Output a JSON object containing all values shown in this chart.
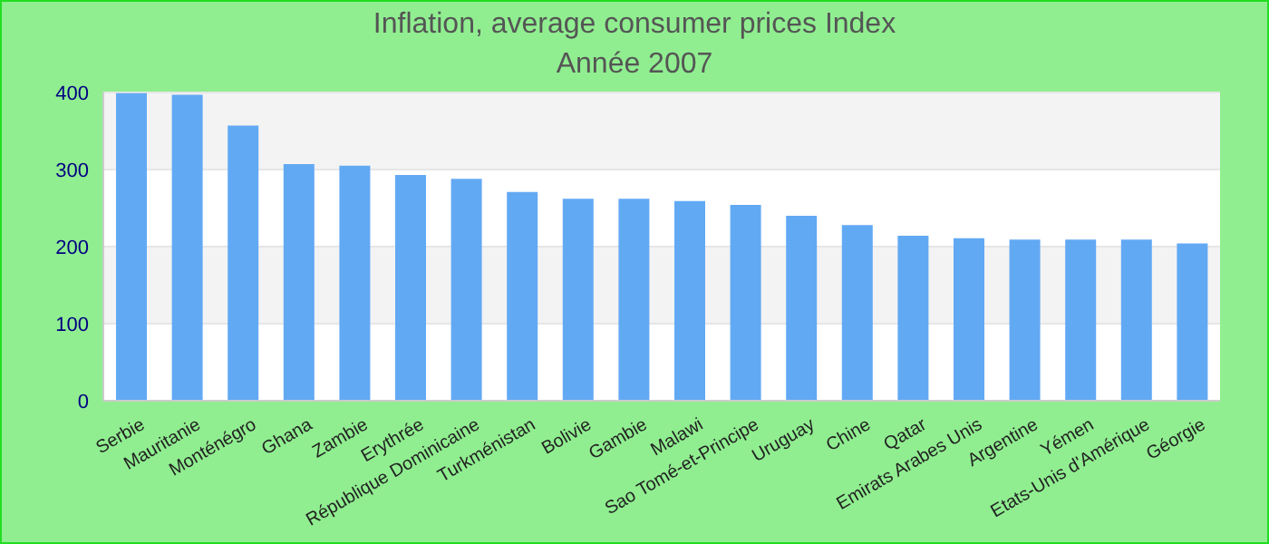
{
  "chart_data": {
    "type": "bar",
    "title": "Inflation, average consumer prices  Index",
    "subtitle": "Année 2007",
    "categories": [
      "Serbie",
      "Mauritanie",
      "Monténégro",
      "Ghana",
      "Zambie",
      "Erythrée",
      "République Dominicaine",
      "Turkménistan",
      "Bolivie",
      "Gambie",
      "Malawi",
      "Sao Tomé-et-Principe",
      "Uruguay",
      "Chine",
      "Qatar",
      "Emirats Arabes Unis",
      "Argentine",
      "Yémen",
      "Etats-Unis d'Amérique",
      "Géorgie"
    ],
    "values": [
      399,
      397,
      357,
      307,
      305,
      293,
      288,
      271,
      262,
      262,
      259,
      254,
      240,
      228,
      214,
      211,
      209,
      209,
      209,
      204
    ],
    "color": "#62a9f4",
    "ylim": [
      0,
      400
    ],
    "yticks": [
      0,
      100,
      200,
      300,
      400
    ],
    "grid": "y",
    "legend": false
  }
}
